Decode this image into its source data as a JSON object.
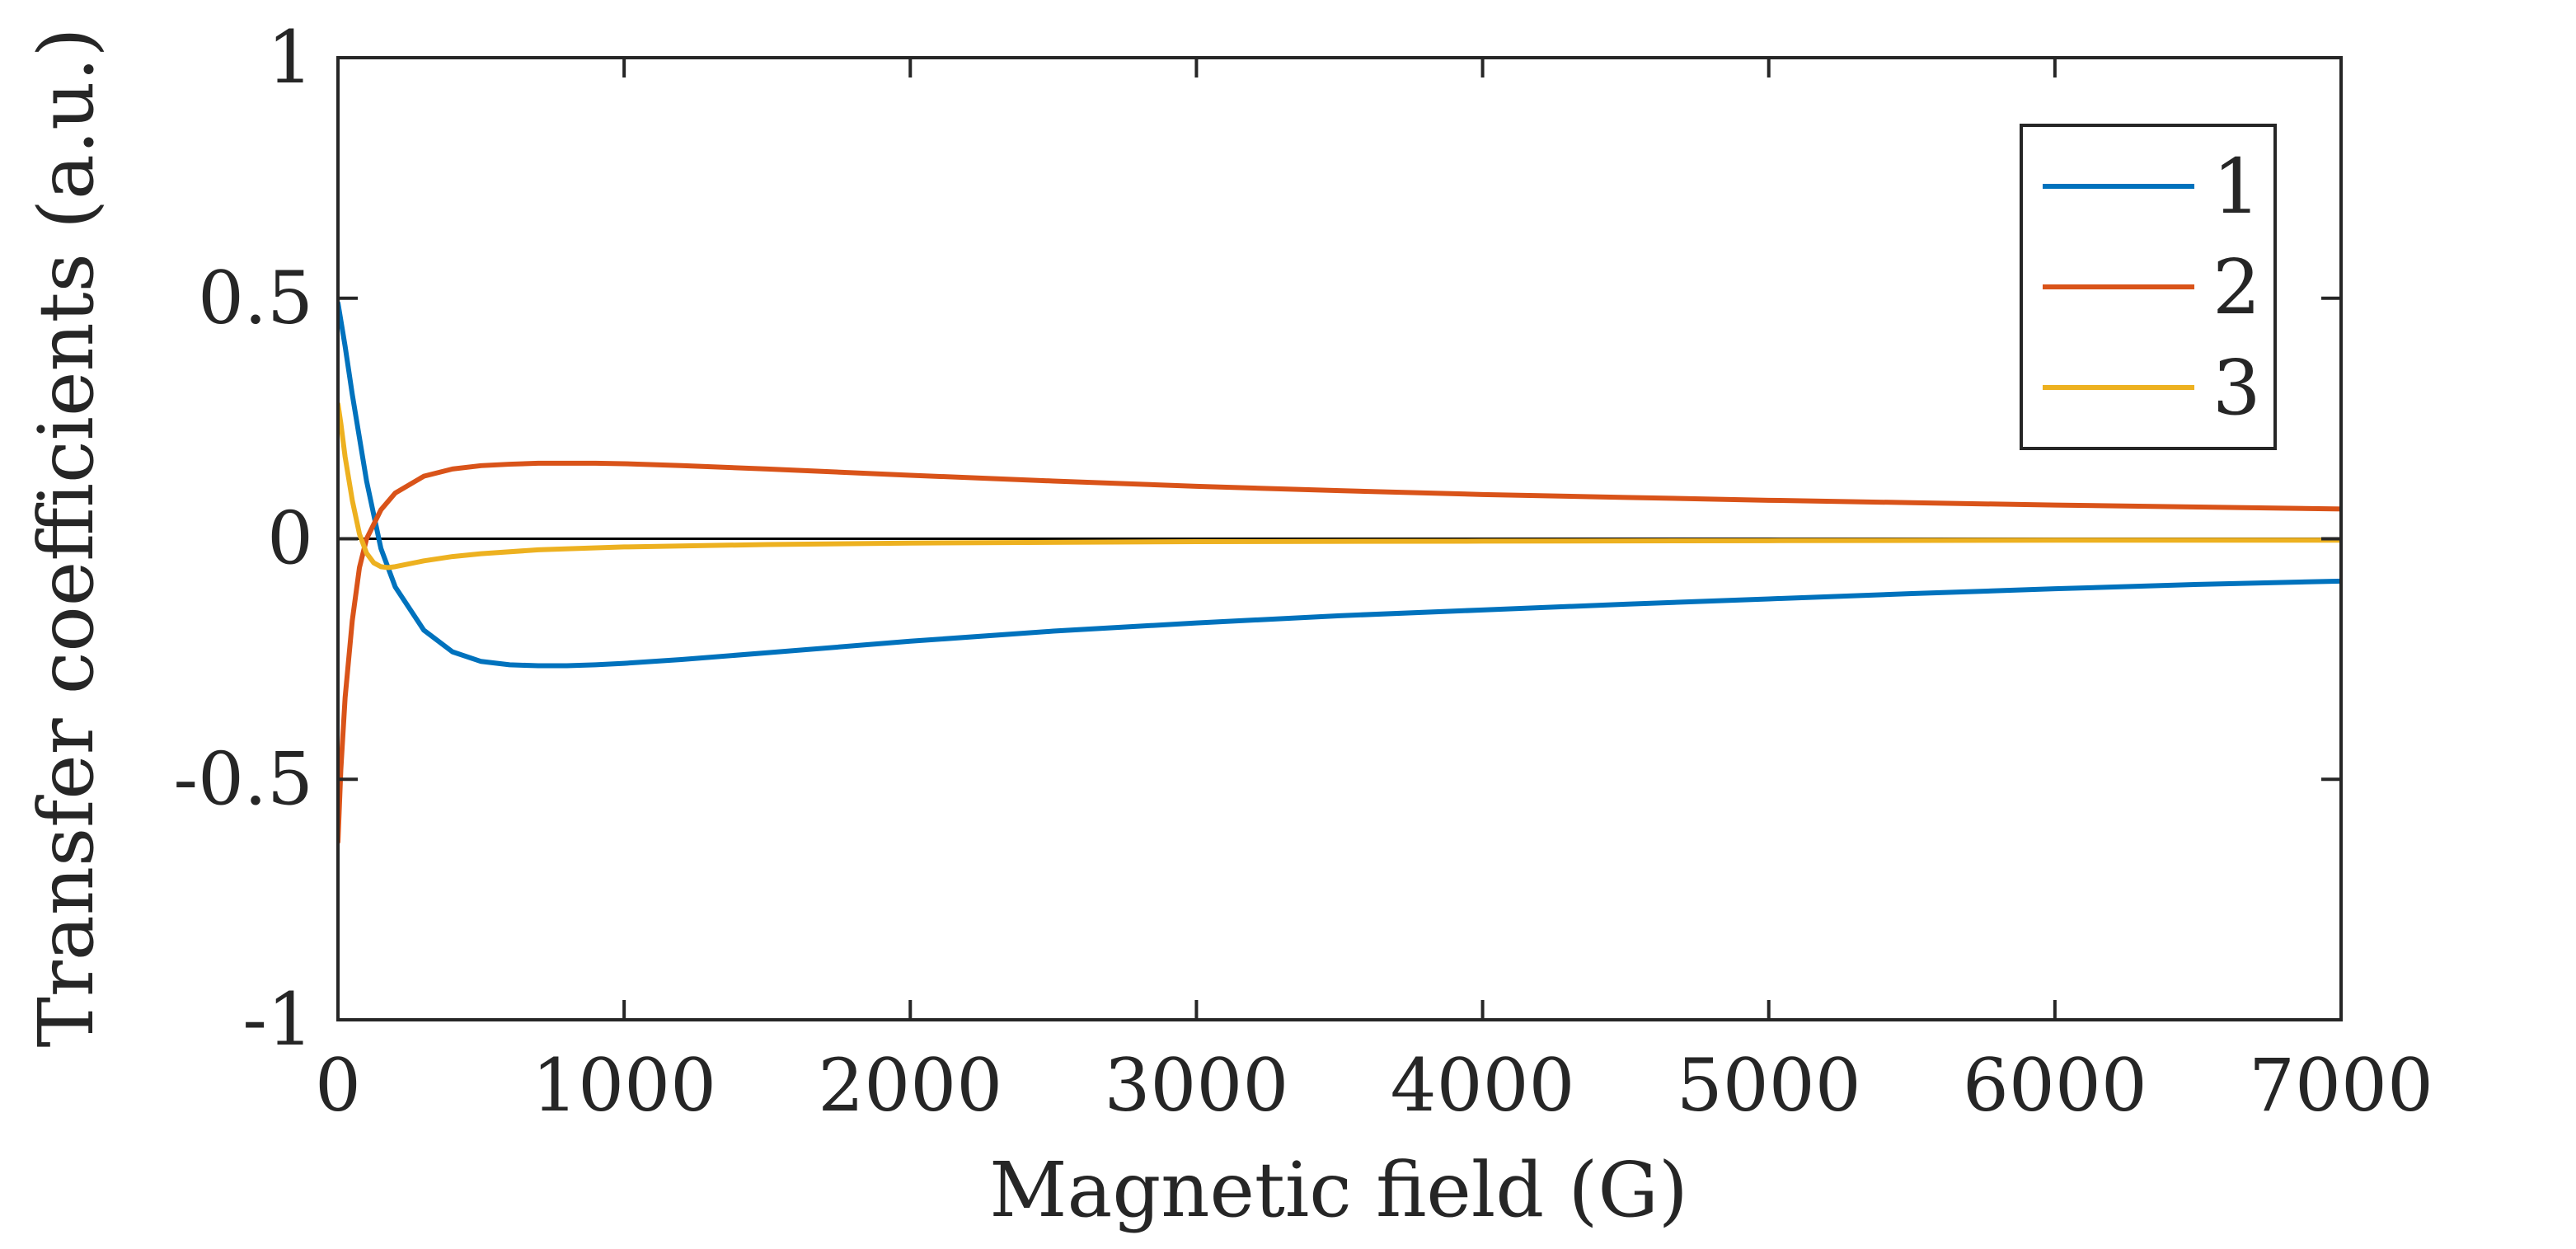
{
  "chart_data": {
    "type": "line",
    "title": "",
    "xlabel": "Magnetic field (G)",
    "ylabel": "Transfer coefficients (a.u.)",
    "xlim": [
      0,
      7000
    ],
    "ylim": [
      -1,
      1
    ],
    "x_ticks": [
      0,
      1000,
      2000,
      3000,
      4000,
      5000,
      6000,
      7000
    ],
    "y_ticks": [
      -1,
      -0.5,
      0,
      0.5,
      1
    ],
    "x_tick_labels": [
      "0",
      "1000",
      "2000",
      "3000",
      "4000",
      "5000",
      "6000",
      "7000"
    ],
    "y_tick_labels": [
      "-1",
      "-0.5",
      "0",
      "0.5",
      "1"
    ],
    "grid": false,
    "legend_position": "top-right",
    "zero_line": true,
    "series": [
      {
        "name": "1",
        "color": "#0072BD",
        "x": [
          0,
          25,
          50,
          100,
          150,
          200,
          300,
          400,
          500,
          600,
          700,
          800,
          900,
          1000,
          1200,
          1500,
          2000,
          2500,
          3000,
          3500,
          4000,
          4500,
          5000,
          5500,
          6000,
          6500,
          7000
        ],
        "y": [
          0.49,
          0.4,
          0.3,
          0.12,
          -0.02,
          -0.1,
          -0.19,
          -0.235,
          -0.255,
          -0.262,
          -0.264,
          -0.264,
          -0.262,
          -0.259,
          -0.251,
          -0.237,
          -0.213,
          -0.192,
          -0.175,
          -0.16,
          -0.148,
          -0.136,
          -0.125,
          -0.114,
          -0.104,
          -0.095,
          -0.088
        ]
      },
      {
        "name": "2",
        "color": "#D95319",
        "x": [
          0,
          10,
          25,
          50,
          75,
          100,
          150,
          200,
          300,
          400,
          500,
          600,
          700,
          800,
          900,
          1000,
          1200,
          1500,
          2000,
          2500,
          3000,
          3500,
          4000,
          4500,
          5000,
          5500,
          6000,
          6500,
          7000
        ],
        "y": [
          -0.63,
          -0.48,
          -0.33,
          -0.17,
          -0.06,
          0.0,
          0.06,
          0.095,
          0.13,
          0.145,
          0.152,
          0.155,
          0.157,
          0.157,
          0.157,
          0.156,
          0.152,
          0.145,
          0.132,
          0.12,
          0.109,
          0.1,
          0.092,
          0.086,
          0.08,
          0.075,
          0.07,
          0.066,
          0.062
        ]
      },
      {
        "name": "3",
        "color": "#EDB120",
        "x": [
          0,
          10,
          25,
          50,
          75,
          100,
          125,
          150,
          175,
          200,
          250,
          300,
          400,
          500,
          700,
          1000,
          1500,
          2000,
          3000,
          4000,
          5000,
          6000,
          7000
        ],
        "y": [
          0.28,
          0.24,
          0.17,
          0.08,
          0.01,
          -0.03,
          -0.05,
          -0.058,
          -0.06,
          -0.058,
          -0.052,
          -0.046,
          -0.037,
          -0.031,
          -0.023,
          -0.017,
          -0.012,
          -0.009,
          -0.006,
          -0.005,
          -0.004,
          -0.003,
          -0.003
        ]
      }
    ],
    "legend_entries": [
      "1",
      "2",
      "3"
    ]
  }
}
